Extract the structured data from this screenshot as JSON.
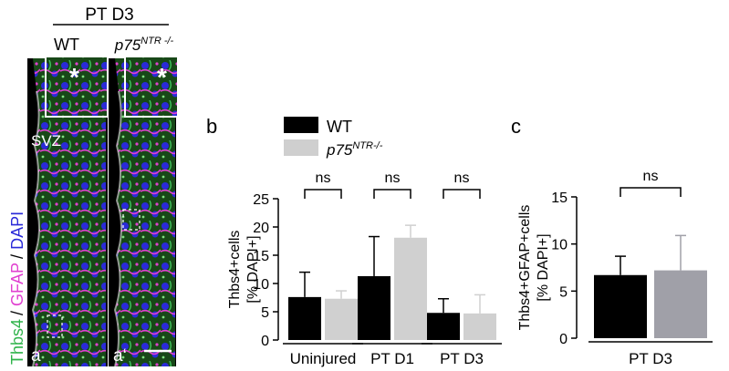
{
  "header": {
    "group_label": "PT D3",
    "wt_label": "WT",
    "ko_label_base": "p75",
    "ko_label_sup": "NTR -/-"
  },
  "micrograph": {
    "stain_label_thbs4": "Thbs4",
    "stain_label_gfap": "GFAP",
    "stain_label_dapi": "DAPI",
    "sep": "/ ",
    "region_label": "SVZ",
    "panel_a_label": "a",
    "panel_a2_label": "a‘",
    "inset_marker": "*",
    "colors": {
      "green": "#2fb34a",
      "magenta": "#e040d0",
      "blue": "#2a2ad8",
      "tissue_bg": "#1a3a1a"
    }
  },
  "legend": {
    "wt": "WT",
    "ko_base": "p75",
    "ko_sup": "NTR-/-",
    "colors": {
      "wt": "#000000",
      "ko": "#cfcfcf"
    }
  },
  "chart_data": [
    {
      "panel": "b",
      "type": "bar",
      "categories": [
        "Uninjured",
        "PT D1",
        "PT D3"
      ],
      "series": [
        {
          "name": "WT",
          "values": [
            7.6,
            11.3,
            4.8
          ],
          "errors": [
            4.4,
            7.0,
            2.5
          ],
          "color": "#000000"
        },
        {
          "name": "p75NTR-/-",
          "values": [
            7.3,
            18.1,
            4.7
          ],
          "errors": [
            1.4,
            2.2,
            3.3
          ],
          "color": "#d0d0d0"
        }
      ],
      "significance": [
        "ns",
        "ns",
        "ns"
      ],
      "ylabel_line1": "Thbs4+cells",
      "ylabel_line2": "[% DAPI+]",
      "ylim": [
        0,
        25
      ],
      "yticks": [
        0,
        5,
        10,
        15,
        20,
        25
      ]
    },
    {
      "panel": "c",
      "type": "bar",
      "categories": [
        "PT D3"
      ],
      "series": [
        {
          "name": "WT",
          "values": [
            6.7
          ],
          "errors": [
            2.0
          ],
          "color": "#000000"
        },
        {
          "name": "p75NTR-/-",
          "values": [
            7.2
          ],
          "errors": [
            3.7
          ],
          "color": "#a0a0a8"
        }
      ],
      "significance": [
        "ns"
      ],
      "ylabel_line1": "Thbs4+GFAP+cells",
      "ylabel_line2": "[% DAPI+]",
      "ylim": [
        0,
        15
      ],
      "yticks": [
        0,
        5,
        10,
        15
      ]
    }
  ]
}
